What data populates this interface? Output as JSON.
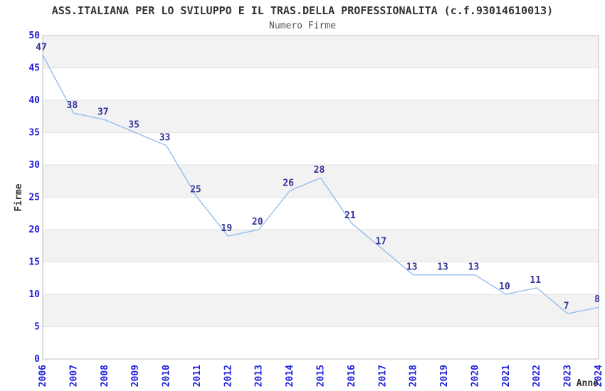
{
  "chart_data": {
    "type": "line",
    "title": "ASS.ITALIANA PER LO SVILUPPO E IL TRAS.DELLA PROFESSIONALITA (c.f.93014610013)",
    "subtitle": "Numero Firme",
    "xlabel": "Anno",
    "ylabel": "Firme",
    "categories": [
      "2006",
      "2007",
      "2008",
      "2009",
      "2010",
      "2011",
      "2012",
      "2013",
      "2014",
      "2015",
      "2016",
      "2017",
      "2018",
      "2019",
      "2020",
      "2021",
      "2022",
      "2023",
      "2024"
    ],
    "values": [
      47,
      38,
      37,
      35,
      33,
      25,
      19,
      20,
      26,
      28,
      21,
      17,
      13,
      13,
      13,
      10,
      11,
      7,
      8
    ],
    "ylim": [
      0,
      50
    ],
    "yticks": [
      0,
      5,
      10,
      15,
      20,
      25,
      30,
      35,
      40,
      45,
      50
    ],
    "grid": "horizontal-gridlines-with-alternating-bands",
    "legend_position": "none",
    "point_labels_shown": true,
    "x_tick_rotation_degrees": 90
  },
  "colors": {
    "line": "#8db8ec",
    "point_label": "#333399",
    "tick_label": "#2020dd",
    "title": "#333333",
    "subtitle": "#555555",
    "axis_title": "#333333",
    "band_gray": "#f2f2f2",
    "gridline": "#e3e3e3",
    "plot_border": "#bfbfbf",
    "background": "#ffffff"
  }
}
